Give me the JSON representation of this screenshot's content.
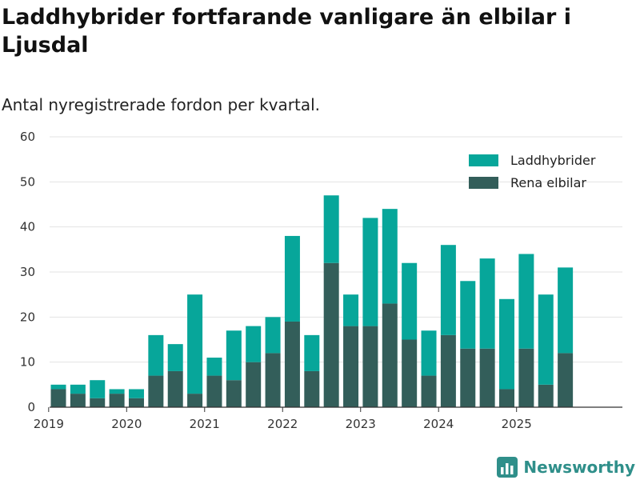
{
  "title": "Laddhybrider fortfarande vanligare än elbilar i Ljusdal",
  "subtitle": "Antal nyregistrerade fordon per kvartal.",
  "brand": "Newsworthy",
  "colors": {
    "laddhybrider": "#07a69a",
    "rena_elbilar": "#335e5a",
    "grid": "#e3e3e3",
    "axis": "#333333"
  },
  "chart_data": {
    "type": "bar",
    "stacked": true,
    "title": "Laddhybrider fortfarande vanligare än elbilar i Ljusdal",
    "subtitle": "Antal nyregistrerade fordon per kvartal.",
    "xlabel": "",
    "ylabel": "",
    "ylim": [
      0,
      60
    ],
    "yticks": [
      0,
      10,
      20,
      30,
      40,
      50,
      60
    ],
    "legend_position": "top-right",
    "grid": true,
    "categories": [
      "2019 Q2",
      "2019 Q3",
      "2019 Q4",
      "2020 Q1",
      "2020 Q2",
      "2020 Q3",
      "2020 Q4",
      "2021 Q1",
      "2021 Q2",
      "2021 Q3",
      "2021 Q4",
      "2022 Q1",
      "2022 Q2",
      "2022 Q3",
      "2022 Q4",
      "2023 Q1",
      "2023 Q2",
      "2023 Q3",
      "2023 Q4",
      "2024 Q1",
      "2024 Q2",
      "2024 Q3",
      "2024 Q4",
      "2025 Q1",
      "2025 Q2",
      "2025 Q3",
      "2025 Q4"
    ],
    "x_tick_labels": [
      "2019",
      "2020",
      "2021",
      "2022",
      "2023",
      "2024",
      "2025"
    ],
    "x_tick_index": [
      -0.5,
      3.5,
      7.5,
      11.5,
      15.5,
      19.5,
      23.5
    ],
    "series": [
      {
        "name": "Rena elbilar",
        "color": "#335e5a",
        "values": [
          4,
          3,
          2,
          3,
          2,
          7,
          8,
          3,
          7,
          6,
          10,
          12,
          19,
          8,
          32,
          18,
          18,
          23,
          15,
          7,
          16,
          13,
          13,
          4,
          13,
          5,
          12
        ]
      },
      {
        "name": "Laddhybrider",
        "color": "#07a69a",
        "values": [
          1,
          2,
          4,
          1,
          2,
          9,
          6,
          22,
          4,
          11,
          8,
          8,
          19,
          8,
          15,
          7,
          24,
          21,
          17,
          10,
          20,
          15,
          20,
          20,
          21,
          20,
          19
        ]
      }
    ],
    "legend": [
      "Laddhybrider",
      "Rena elbilar"
    ]
  }
}
